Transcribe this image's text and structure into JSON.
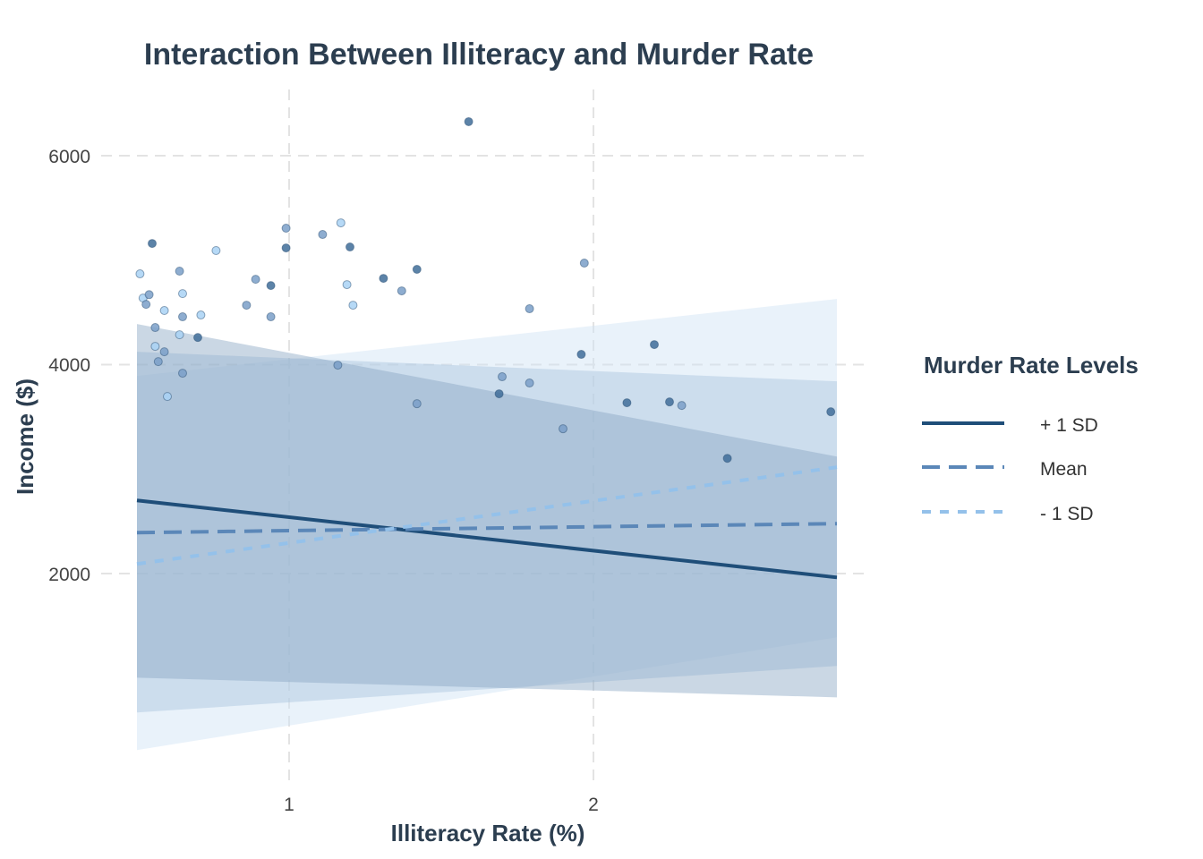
{
  "chart_data": {
    "type": "line",
    "title": "Interaction Between Illiteracy and Murder Rate",
    "xlabel": "Illiteracy Rate (%)",
    "ylabel": "Income ($)",
    "xlim": [
      0.5,
      2.8
    ],
    "ylim": [
      0,
      6600
    ],
    "x_ticks": [
      "1",
      "2"
    ],
    "y_ticks": [
      "2000",
      "4000",
      "6000"
    ],
    "grid": true,
    "legend": {
      "title": "Murder Rate Levels",
      "placement": "right",
      "entries": [
        "+ 1 SD",
        "Mean",
        "- 1 SD"
      ]
    },
    "series": [
      {
        "name": "+ 1 SD",
        "color": "#1f4e79",
        "dash": "solid",
        "x": [
          0.5,
          2.8
        ],
        "y": [
          2700,
          1963
        ],
        "ribbon_upper": [
          4389,
          3120
        ],
        "ribbon_lower": [
          1003,
          815
        ],
        "ribbon_color": "#8aa6c4"
      },
      {
        "name": "Mean",
        "color": "#5b87b8",
        "dash": "dashed",
        "x": [
          0.5,
          2.8
        ],
        "y": [
          2392,
          2478
        ],
        "ribbon_upper": [
          4123,
          3840
        ],
        "ribbon_lower": [
          670,
          1116
        ],
        "ribbon_color": "#a9c3de"
      },
      {
        "name": "- 1 SD",
        "color": "#94c1ea",
        "dash": "dotted",
        "x": [
          0.5,
          2.8
        ],
        "y": [
          2092,
          3018
        ],
        "ribbon_upper": [
          3892,
          4629
        ],
        "ribbon_lower": [
          310,
          1390
        ],
        "ribbon_color": "#cfe2f5"
      }
    ],
    "points": [
      [
        1.59,
        6326,
        "dark"
      ],
      [
        0.55,
        5160,
        "dark"
      ],
      [
        0.51,
        4869,
        "light"
      ],
      [
        0.52,
        4637,
        "light"
      ],
      [
        0.53,
        4577,
        "mid"
      ],
      [
        0.54,
        4670,
        "mid"
      ],
      [
        0.56,
        4355,
        "mid"
      ],
      [
        0.56,
        4175,
        "light"
      ],
      [
        0.57,
        4029,
        "mid"
      ],
      [
        0.59,
        4518,
        "light"
      ],
      [
        0.59,
        4123,
        "mid"
      ],
      [
        0.6,
        3695,
        "light"
      ],
      [
        0.64,
        4895,
        "mid"
      ],
      [
        0.65,
        4458,
        "mid"
      ],
      [
        0.65,
        4680,
        "light"
      ],
      [
        0.64,
        4286,
        "light"
      ],
      [
        0.65,
        3918,
        "mid"
      ],
      [
        0.7,
        4260,
        "dark"
      ],
      [
        0.71,
        4475,
        "light"
      ],
      [
        0.76,
        5092,
        "light"
      ],
      [
        0.86,
        4569,
        "mid"
      ],
      [
        0.89,
        4817,
        "mid"
      ],
      [
        0.94,
        4757,
        "dark"
      ],
      [
        0.94,
        4458,
        "mid"
      ],
      [
        0.99,
        5306,
        "mid"
      ],
      [
        0.99,
        5117,
        "dark"
      ],
      [
        1.11,
        5246,
        "mid"
      ],
      [
        1.17,
        5357,
        "light"
      ],
      [
        1.16,
        3995,
        "mid"
      ],
      [
        1.19,
        4766,
        "light"
      ],
      [
        1.2,
        5126,
        "dark"
      ],
      [
        1.21,
        4569,
        "light"
      ],
      [
        1.31,
        4826,
        "dark"
      ],
      [
        1.37,
        4706,
        "mid"
      ],
      [
        1.42,
        4912,
        "dark"
      ],
      [
        1.42,
        3626,
        "mid"
      ],
      [
        1.69,
        3721,
        "dark"
      ],
      [
        1.7,
        3884,
        "mid"
      ],
      [
        1.79,
        3824,
        "mid"
      ],
      [
        1.79,
        4535,
        "mid"
      ],
      [
        1.9,
        3386,
        "mid"
      ],
      [
        1.96,
        4098,
        "dark"
      ],
      [
        1.97,
        4972,
        "mid"
      ],
      [
        2.11,
        3635,
        "dark"
      ],
      [
        2.2,
        4192,
        "dark"
      ],
      [
        2.25,
        3643,
        "dark"
      ],
      [
        2.29,
        3609,
        "mid"
      ],
      [
        2.44,
        3103,
        "dark"
      ],
      [
        2.78,
        3549,
        "dark"
      ]
    ],
    "point_colors": {
      "dark": "#3f6d99",
      "mid": "#7a9fc8",
      "light": "#a9d2f5"
    }
  }
}
